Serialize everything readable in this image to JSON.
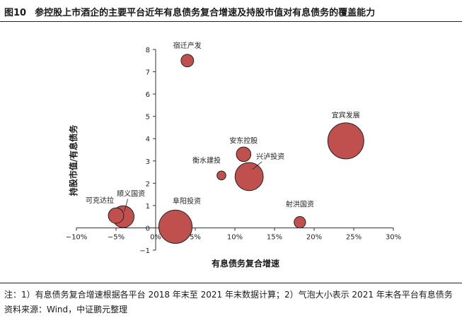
{
  "figure": {
    "number": "图10",
    "title": "参控股上市酒企的主要平台近年有息债务复合增速及持股市值对有息债务的覆盖能力"
  },
  "chart_data": {
    "type": "scatter",
    "subtype": "bubble",
    "xlabel": "有息债务复合增速",
    "ylabel": "持股市值/有息债务",
    "xlim": [
      -0.1,
      0.3
    ],
    "ylim": [
      -1,
      8
    ],
    "x_ticks": [
      -0.1,
      -0.05,
      0,
      0.05,
      0.1,
      0.15,
      0.2,
      0.25,
      0.3
    ],
    "x_tick_labels": [
      "−10%",
      "−5%",
      "0%",
      "5%",
      "10%",
      "15%",
      "20%",
      "25%",
      "30%"
    ],
    "y_ticks": [
      -1,
      0,
      1,
      2,
      3,
      4,
      5,
      6,
      7,
      8
    ],
    "y_tick_labels": [
      "−1",
      "0",
      "1",
      "2",
      "3",
      "4",
      "5",
      "6",
      "7",
      "8"
    ],
    "grid": false,
    "bubble_color": "#c0504d",
    "bubble_edge": "#222222",
    "points": [
      {
        "label": "宿迁产发",
        "x": 0.04,
        "y": 7.5,
        "size": 0.6
      },
      {
        "label": "宜宾发展",
        "x": 0.24,
        "y": 3.9,
        "size": 4.9
      },
      {
        "label": "安东控股",
        "x": 0.111,
        "y": 3.3,
        "size": 0.8
      },
      {
        "label": "兴泸投资",
        "x": 0.118,
        "y": 2.3,
        "size": 3.0
      },
      {
        "label": "衡水建投",
        "x": 0.083,
        "y": 2.35,
        "size": 0.3
      },
      {
        "label": "顺义国资",
        "x": -0.041,
        "y": 0.5,
        "size": 1.8
      },
      {
        "label": "可克达拉",
        "x": -0.05,
        "y": 0.55,
        "size": 0.9
      },
      {
        "label": "阜阳投资",
        "x": 0.025,
        "y": 0.05,
        "size": 4.2
      },
      {
        "label": "射洪国资",
        "x": 0.182,
        "y": 0.25,
        "size": 0.5
      }
    ]
  },
  "notes": {
    "line1": "注：1）有息债务复合增速根据各平台 2018 年末至 2021 年末数据计算；2）气泡大小表示 2021 年末各平台有息债务",
    "line2": "资料来源：Wind，中证鹏元整理"
  }
}
